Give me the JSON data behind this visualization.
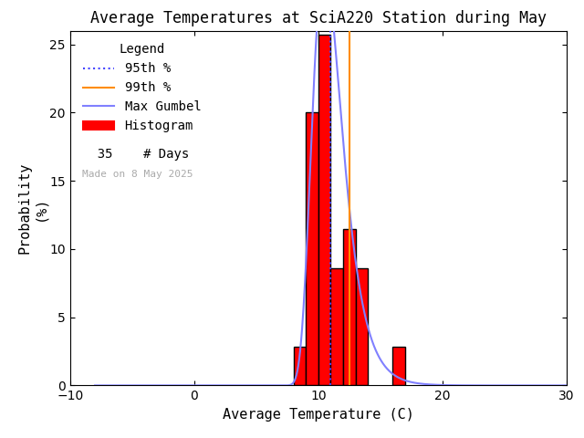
{
  "title": "Average Temperatures at SciA220 Station during May",
  "xlabel": "Average Temperature (C)",
  "ylabel": "Probability\n(%)",
  "xlim": [
    -10,
    30
  ],
  "ylim": [
    0,
    26
  ],
  "yticks": [
    0,
    5,
    10,
    15,
    20,
    25
  ],
  "xticks": [
    -10,
    0,
    10,
    20,
    30
  ],
  "bg_color": "#ffffff",
  "hist_color": "#ff0000",
  "hist_edgecolor": "#000000",
  "gumbel_color": "#8080ff",
  "p95_color": "#4444ff",
  "p99_color": "#ff8c00",
  "n_days": 35,
  "date_label": "Made on 8 May 2025",
  "bin_edges": [
    8,
    9,
    10,
    11,
    12,
    13,
    14,
    15,
    16,
    17
  ],
  "bin_heights": [
    2.857,
    20.0,
    25.714,
    8.571,
    11.429,
    8.571,
    0.0,
    0.0,
    2.857,
    0.0
  ],
  "gumbel_mu": 10.5,
  "gumbel_beta": 1.2,
  "p95_x": 11.0,
  "p99_x": 12.5,
  "title_fontsize": 12,
  "axis_fontsize": 11,
  "tick_fontsize": 10,
  "legend_fontsize": 10
}
